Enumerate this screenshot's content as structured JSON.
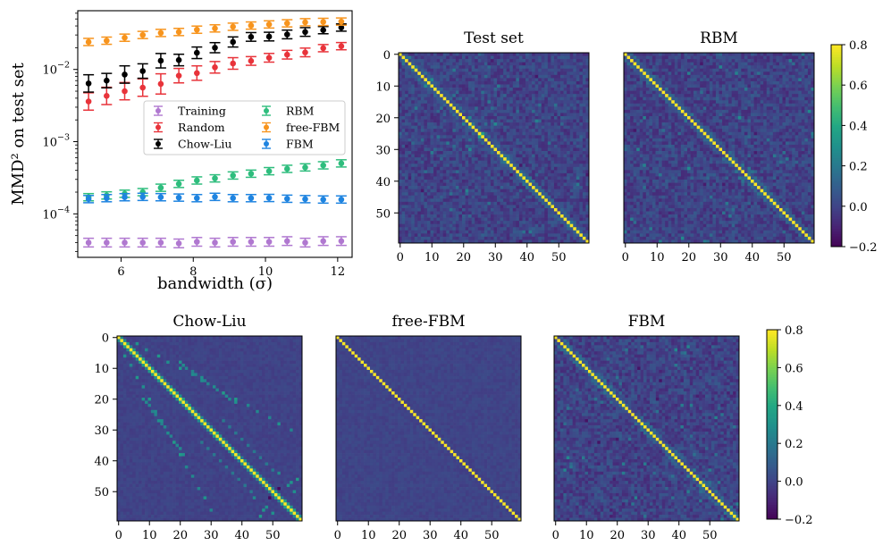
{
  "chart_data": [
    {
      "type": "scatter",
      "xlabel": "bandwidth (σ)",
      "ylabel": "MMD² on test set",
      "yscale": "log",
      "xlim": [
        4.8,
        12.4
      ],
      "ylim": [
        2.5e-05,
        0.065
      ],
      "xticks": [
        6,
        8,
        10,
        12
      ],
      "yticks": [
        {
          "value": 0.01,
          "base": "10",
          "exp": "−2"
        },
        {
          "value": 0.001,
          "base": "10",
          "exp": "−3"
        },
        {
          "value": 0.0001,
          "base": "10",
          "exp": "−4"
        }
      ],
      "error_bars": true,
      "legend_position": "center-right",
      "x": [
        5.1,
        5.6,
        6.1,
        6.6,
        7.1,
        7.6,
        8.1,
        8.6,
        9.1,
        9.6,
        10.1,
        10.6,
        11.1,
        11.6,
        12.1
      ],
      "series": [
        {
          "name": "Training",
          "color": "#b078d0",
          "values": [
            4e-05,
            4e-05,
            4e-05,
            4e-05,
            4e-05,
            3.9e-05,
            4.1e-05,
            4e-05,
            4.1e-05,
            4.1e-05,
            4.1e-05,
            4.2e-05,
            4e-05,
            4.2e-05,
            4.2e-05
          ],
          "err": [
            0.06,
            0.06,
            0.06,
            0.06,
            0.06,
            0.06,
            0.06,
            0.06,
            0.06,
            0.06,
            0.06,
            0.06,
            0.06,
            0.06,
            0.06
          ]
        },
        {
          "name": "Random",
          "color": "#e8333a",
          "values": [
            0.0036,
            0.0043,
            0.005,
            0.0056,
            0.0063,
            0.0082,
            0.0089,
            0.0107,
            0.0121,
            0.0131,
            0.0145,
            0.016,
            0.0172,
            0.0197,
            0.021
          ],
          "err": [
            0.12,
            0.12,
            0.12,
            0.12,
            0.14,
            0.1,
            0.1,
            0.08,
            0.08,
            0.06,
            0.06,
            0.06,
            0.06,
            0.05,
            0.05
          ]
        },
        {
          "name": "Chow-Liu",
          "color": "#000000",
          "values": [
            0.0064,
            0.007,
            0.0085,
            0.0095,
            0.0132,
            0.0135,
            0.017,
            0.02,
            0.024,
            0.0282,
            0.0285,
            0.0305,
            0.033,
            0.035,
            0.038
          ],
          "err": [
            0.12,
            0.1,
            0.12,
            0.1,
            0.1,
            0.08,
            0.08,
            0.07,
            0.07,
            0.06,
            0.06,
            0.06,
            0.06,
            0.05,
            0.05
          ]
        },
        {
          "name": "RBM",
          "color": "#2ebd7d",
          "values": [
            0.00017,
            0.00018,
            0.00019,
            0.0002,
            0.00023,
            0.00026,
            0.00029,
            0.00031,
            0.00034,
            0.00036,
            0.00039,
            0.00042,
            0.00044,
            0.00047,
            0.0005
          ],
          "err": [
            0.05,
            0.05,
            0.05,
            0.05,
            0.05,
            0.05,
            0.05,
            0.05,
            0.05,
            0.05,
            0.05,
            0.05,
            0.05,
            0.05,
            0.05
          ]
        },
        {
          "name": "free-FBM",
          "color": "#f7941d",
          "values": [
            0.024,
            0.025,
            0.0275,
            0.03,
            0.032,
            0.033,
            0.0355,
            0.037,
            0.039,
            0.0405,
            0.042,
            0.0435,
            0.045,
            0.0455,
            0.046
          ],
          "err": [
            0.05,
            0.05,
            0.05,
            0.05,
            0.05,
            0.05,
            0.05,
            0.05,
            0.05,
            0.05,
            0.05,
            0.05,
            0.05,
            0.05,
            0.05
          ]
        },
        {
          "name": "FBM",
          "color": "#1f84e0",
          "values": [
            0.00016,
            0.000165,
            0.00017,
            0.000172,
            0.00017,
            0.000168,
            0.000165,
            0.000172,
            0.000165,
            0.000165,
            0.000166,
            0.000162,
            0.00016,
            0.000158,
            0.000158
          ],
          "err": [
            0.05,
            0.05,
            0.05,
            0.05,
            0.05,
            0.05,
            0.05,
            0.05,
            0.05,
            0.05,
            0.05,
            0.05,
            0.05,
            0.05,
            0.05
          ]
        }
      ]
    },
    {
      "type": "heatmap",
      "title": "Test set",
      "size": 60,
      "offdiag_pattern": "noisy",
      "xticks": [
        0,
        10,
        20,
        30,
        40,
        50
      ],
      "yticks": [
        0,
        10,
        20,
        30,
        40,
        50
      ],
      "vmin": -0.2,
      "vmax": 0.8,
      "colormap": "viridis",
      "diagonal": 0.8
    },
    {
      "type": "heatmap",
      "title": "RBM",
      "size": 60,
      "offdiag_pattern": "noisy",
      "xticks": [
        0,
        10,
        20,
        30,
        40,
        50
      ],
      "yticks": [],
      "vmin": -0.2,
      "vmax": 0.8,
      "colormap": "viridis",
      "diagonal": 0.8
    },
    {
      "type": "heatmap",
      "title": "Chow-Liu",
      "size": 60,
      "offdiag_pattern": "tree",
      "xticks": [
        0,
        10,
        20,
        30,
        40,
        50
      ],
      "yticks": [
        0,
        10,
        20,
        30,
        40,
        50
      ],
      "vmin": -0.2,
      "vmax": 0.8,
      "colormap": "viridis",
      "diagonal": 0.8
    },
    {
      "type": "heatmap",
      "title": "free-FBM",
      "size": 60,
      "offdiag_pattern": "flat",
      "xticks": [
        0,
        10,
        20,
        30,
        40,
        50
      ],
      "yticks": [],
      "vmin": -0.2,
      "vmax": 0.8,
      "colormap": "viridis",
      "diagonal": 0.8
    },
    {
      "type": "heatmap",
      "title": "FBM",
      "size": 60,
      "offdiag_pattern": "noisy",
      "xticks": [
        0,
        10,
        20,
        30,
        40,
        50
      ],
      "yticks": [],
      "vmin": -0.2,
      "vmax": 0.8,
      "colormap": "viridis",
      "diagonal": 0.8
    }
  ],
  "colorbars": [
    {
      "ticks": [
        "0.8",
        "0.6",
        "0.4",
        "0.2",
        "0.0",
        "−0.2"
      ],
      "values": [
        0.8,
        0.6,
        0.4,
        0.2,
        0.0,
        -0.2
      ]
    },
    {
      "ticks": [
        "0.8",
        "0.6",
        "0.4",
        "0.2",
        "0.0",
        "−0.2"
      ],
      "values": [
        0.8,
        0.6,
        0.4,
        0.2,
        0.0,
        -0.2
      ]
    }
  ]
}
